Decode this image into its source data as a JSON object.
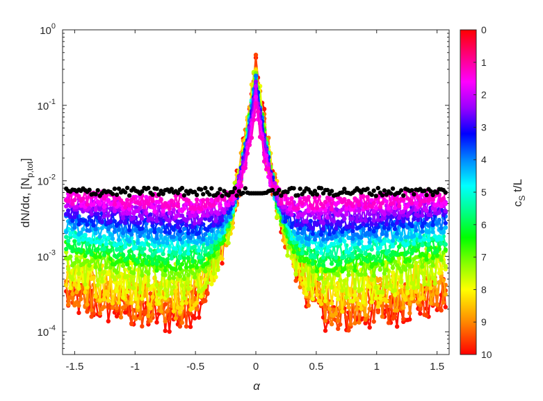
{
  "chart_data": {
    "type": "scatter",
    "title": "",
    "xlabel": "α",
    "ylabel": "dN/dα, [N",
    "ylabel_sub": "p,tot",
    "ylabel_close": "]",
    "xlim": [
      -1.6,
      1.6
    ],
    "ylim": [
      5e-05,
      1
    ],
    "yscale": "log",
    "grid": false,
    "x_ticks": [
      {
        "value": -1.5,
        "label": "-1.5"
      },
      {
        "value": -1,
        "label": "-1"
      },
      {
        "value": -0.5,
        "label": "-0.5"
      },
      {
        "value": 0,
        "label": "0"
      },
      {
        "value": 0.5,
        "label": "0.5"
      },
      {
        "value": 1,
        "label": "1"
      },
      {
        "value": 1.5,
        "label": "1.5"
      }
    ],
    "y_ticks": [
      {
        "exp": 0,
        "label_base": "10",
        "label_exp": "0"
      },
      {
        "exp": -1,
        "label_base": "10",
        "label_exp": "-1"
      },
      {
        "exp": -2,
        "label_base": "10",
        "label_exp": "-2"
      },
      {
        "exp": -3,
        "label_base": "10",
        "label_exp": "-3"
      },
      {
        "exp": -4,
        "label_base": "10",
        "label_exp": "-4"
      }
    ],
    "colorbar": {
      "label_main": "c",
      "label_sub": "S",
      "label_rest": " t/L",
      "range": [
        0,
        10
      ],
      "ticks": [
        "0",
        "1",
        "2",
        "3",
        "4",
        "5",
        "6",
        "7",
        "8",
        "9",
        "10"
      ],
      "colormap": "hsv (red at 0 → magenta → blue → cyan → green → yellow → red at 10)"
    },
    "series_description": "One series per time c_S t/L from 0 to 10 (0.5 steps), colored by colorbar; initial black series uniform at ~0.007",
    "series": [
      {
        "t": 0,
        "color": "#000000",
        "floor": 0.0072,
        "center_peak": 0.0072,
        "curvature": 0.0
      },
      {
        "t": 0.5,
        "color": "#ff00cc",
        "floor": 0.005,
        "center_peak": 0.09,
        "curvature": 0.2
      },
      {
        "t": 1,
        "color": "#ff00ff",
        "floor": 0.0045,
        "center_peak": 0.11,
        "curvature": 0.25
      },
      {
        "t": 1.5,
        "color": "#cc00ff",
        "floor": 0.0038,
        "center_peak": 0.13,
        "curvature": 0.3
      },
      {
        "t": 2,
        "color": "#9900ff",
        "floor": 0.0032,
        "center_peak": 0.15,
        "curvature": 0.35
      },
      {
        "t": 2.5,
        "color": "#4400ff",
        "floor": 0.0027,
        "center_peak": 0.17,
        "curvature": 0.4
      },
      {
        "t": 3,
        "color": "#0022ff",
        "floor": 0.0022,
        "center_peak": 0.18,
        "curvature": 0.45
      },
      {
        "t": 3.5,
        "color": "#0077ff",
        "floor": 0.0018,
        "center_peak": 0.19,
        "curvature": 0.5
      },
      {
        "t": 4,
        "color": "#00bbff",
        "floor": 0.0015,
        "center_peak": 0.2,
        "curvature": 0.55
      },
      {
        "t": 4.5,
        "color": "#00ffee",
        "floor": 0.0012,
        "center_peak": 0.21,
        "curvature": 0.6
      },
      {
        "t": 5,
        "color": "#00ff99",
        "floor": 0.001,
        "center_peak": 0.22,
        "curvature": 0.65
      },
      {
        "t": 5.5,
        "color": "#00ff44",
        "floor": 0.0008,
        "center_peak": 0.22,
        "curvature": 0.7
      },
      {
        "t": 6,
        "color": "#22ff00",
        "floor": 0.00065,
        "center_peak": 0.23,
        "curvature": 0.75
      },
      {
        "t": 6.5,
        "color": "#77ff00",
        "floor": 0.0005,
        "center_peak": 0.23,
        "curvature": 0.8
      },
      {
        "t": 7,
        "color": "#bbff00",
        "floor": 0.0004,
        "center_peak": 0.24,
        "curvature": 0.85
      },
      {
        "t": 7.5,
        "color": "#eeff00",
        "floor": 0.00032,
        "center_peak": 0.24,
        "curvature": 0.9
      },
      {
        "t": 8,
        "color": "#ffdd00",
        "floor": 0.00026,
        "center_peak": 0.25,
        "curvature": 0.95
      },
      {
        "t": 8.5,
        "color": "#ffaa00",
        "floor": 0.00021,
        "center_peak": 0.25,
        "curvature": 1.0
      },
      {
        "t": 9,
        "color": "#ff7700",
        "floor": 0.00017,
        "center_peak": 0.26,
        "curvature": 1.05
      },
      {
        "t": 9.5,
        "color": "#ff4400",
        "floor": 0.00014,
        "center_peak": 0.26,
        "curvature": 1.1
      },
      {
        "t": 10,
        "color": "#ff1100",
        "floor": 0.00012,
        "center_peak": 0.27,
        "curvature": 1.15
      }
    ]
  }
}
